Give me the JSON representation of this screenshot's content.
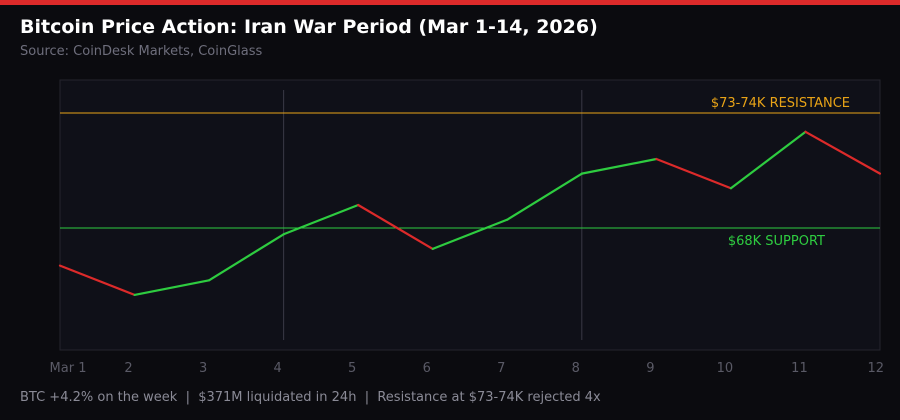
{
  "header": {
    "title": "Bitcoin Price Action: Iran War Period (Mar 1-14, 2026)",
    "subtitle": "Source: CoinDesk Markets, CoinGlass"
  },
  "footer": {
    "text": "BTC +4.2% on the week  |  $371M liquidated in 24h  |  Resistance at $73-74K rejected 4x"
  },
  "colors": {
    "accent": "#dc2a2a",
    "up": "#2ecc40",
    "down": "#dc2a2a",
    "resistance": "#e8a317",
    "support": "#2ecc40"
  },
  "chart_data": {
    "type": "line",
    "x": [
      "Mar 1",
      "2",
      "3",
      "4",
      "5",
      "6",
      "7",
      "8",
      "9",
      "10",
      "11",
      "12"
    ],
    "values": [
      66.2,
      64.8,
      65.5,
      67.7,
      69.1,
      67.0,
      68.4,
      70.6,
      71.3,
      69.9,
      72.6,
      70.6
    ],
    "unit": "USD thousands",
    "ylim": [
      60.0,
      75.0
    ],
    "grid": false,
    "segment_coloring": "green when rising, red when falling",
    "reference_lines": [
      {
        "label": "$73-74K RESISTANCE",
        "value": 73.5,
        "color": "#e8a317"
      },
      {
        "label": "$68K SUPPORT",
        "value": 68,
        "color": "#2ecc40"
      }
    ],
    "vertical_markers": [
      "4",
      "8"
    ]
  }
}
